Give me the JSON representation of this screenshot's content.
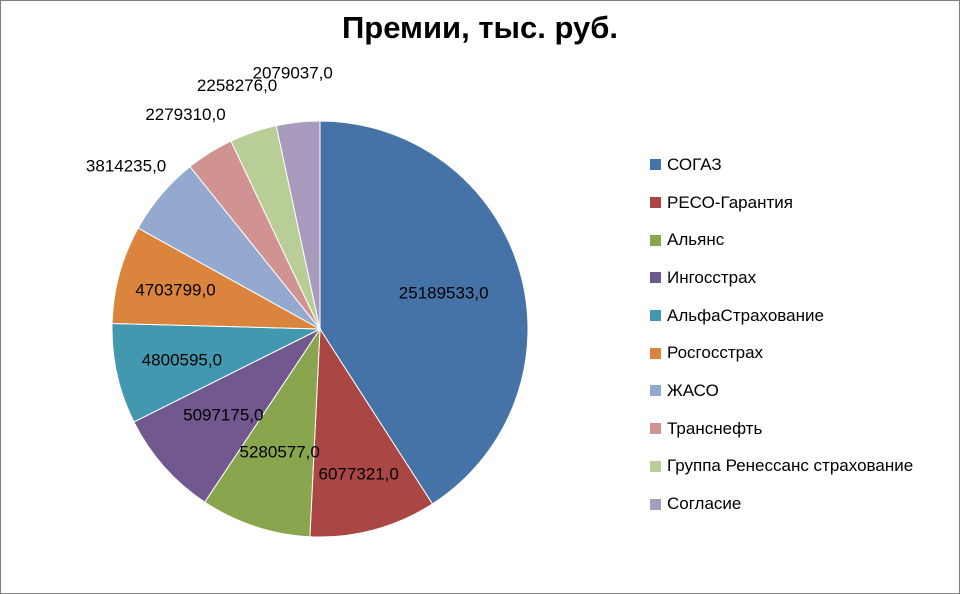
{
  "chart_data": {
    "type": "pie",
    "title": "Премии, тыс. руб.",
    "categories": [
      "СОГАЗ",
      "РЕСО-Гарантия",
      "Альянс",
      "Ингосстрах",
      "АльфаСтрахование",
      "Росгосстрах",
      "ЖАСО",
      "Транснефть",
      "Группа Ренессанс страхование",
      "Согласие"
    ],
    "values": [
      25189533.0,
      6077321.0,
      5280577.0,
      5097175.0,
      4800595.0,
      4703799.0,
      3814235.0,
      2279310.0,
      2258276.0,
      2079037.0
    ],
    "data_labels": [
      "25189533,0",
      "6077321,0",
      "5280577,0",
      "5097175,0",
      "4800595,0",
      "4703799,0",
      "3814235,0",
      "2279310,0",
      "2258276,0",
      "2079037,0"
    ],
    "colors": [
      "#4572A7",
      "#AA4643",
      "#89A54E",
      "#71588F",
      "#4198AF",
      "#DB843D",
      "#93A9CF",
      "#D19392",
      "#B9CD96",
      "#A99BBD"
    ],
    "legend_position": "right"
  }
}
